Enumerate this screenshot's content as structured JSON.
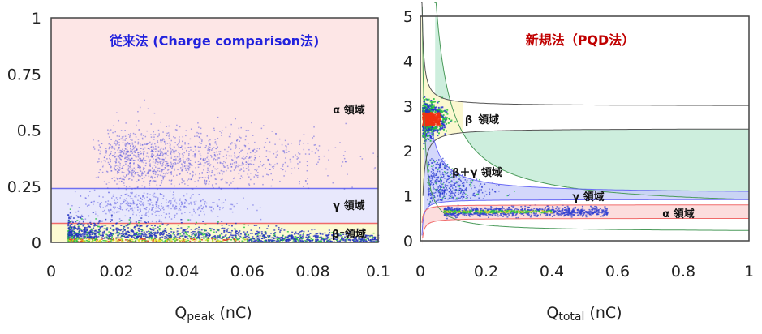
{
  "chart_data": [
    {
      "type": "scatter",
      "title": "従来法 (Charge comparison法)",
      "title_color": "#2222dd",
      "xlabel_main": "Q",
      "xlabel_sub": "peak",
      "xlabel_unit": " (nC)",
      "xlim": [
        0,
        0.1
      ],
      "ylim": [
        0,
        1
      ],
      "xticks": [
        "0",
        "0.02",
        "0.04",
        "0.06",
        "0.08",
        "0.1"
      ],
      "yticks": [
        "0",
        "0.25",
        "0.5",
        "0.75",
        "1"
      ],
      "regions": [
        {
          "label": "α 領域",
          "y_range": [
            0.24,
            1
          ],
          "fill": "#fde6e6",
          "boundary_color": "#6f6ff0"
        },
        {
          "label": "γ 領域",
          "y_range": [
            0.085,
            0.24
          ],
          "fill": "#e8e8fc",
          "boundary_color": "#f06a6a"
        },
        {
          "label": "β⁻領域",
          "y_range": [
            0,
            0.085
          ],
          "fill": "#fcfad2"
        }
      ],
      "clusters": [
        {
          "region": "α",
          "x_center": 0.035,
          "y_center": 0.37,
          "x_extent": [
            0.012,
            0.1
          ],
          "y_extent": [
            0.25,
            0.57
          ]
        },
        {
          "region": "γ",
          "x_center": 0.03,
          "y_center": 0.17,
          "x_extent": [
            0.01,
            0.06
          ],
          "y_extent": [
            0.1,
            0.23
          ]
        },
        {
          "region": "β⁻",
          "x_center": 0.02,
          "y_center": 0.02,
          "x_extent": [
            0.005,
            0.1
          ],
          "y_extent": [
            0,
            0.12
          ]
        }
      ]
    },
    {
      "type": "scatter",
      "title": "新規法（PQD法）",
      "title_color": "#c00000",
      "xlabel_main": "Q",
      "xlabel_sub": "total",
      "xlabel_unit": " (nC)",
      "xlim": [
        0,
        1
      ],
      "ylim": [
        0,
        5
      ],
      "xticks": [
        "0",
        "0.2",
        "0.4",
        "0.6",
        "0.8",
        "1"
      ],
      "yticks": [
        "0",
        "1",
        "2",
        "3",
        "4",
        "5"
      ],
      "regions": [
        {
          "label": "β⁻領域",
          "asymptote_range": [
            2.5,
            3.0
          ],
          "fill": "#fbf8d0",
          "boundary_color": "#555555"
        },
        {
          "label": "β＋γ 領域",
          "fill": "#cdeedd",
          "boundary_color": "#4a9a5a"
        },
        {
          "label": "γ 領域",
          "asymptote_range": [
            0.92,
            1.05
          ],
          "fill": "#c8cdfa",
          "boundary_color": "#6a6af5"
        },
        {
          "label": "α 領域",
          "asymptote_range": [
            0.5,
            0.8
          ],
          "fill": "#fbd4d4",
          "boundary_color": "#f06a6a"
        }
      ],
      "clusters": [
        {
          "region": "β⁻",
          "x_center": 0.02,
          "y_center": 2.7,
          "x_extent": [
            0.0,
            0.1
          ],
          "y_extent": [
            2.3,
            3.2
          ]
        },
        {
          "region": "γ",
          "x_center": 0.05,
          "y_center": 1.1,
          "x_extent": [
            0.02,
            0.5
          ],
          "y_extent": [
            0.9,
            1.3
          ]
        },
        {
          "region": "α",
          "x_center": 0.3,
          "y_center": 0.65,
          "x_extent": [
            0.07,
            0.6
          ],
          "y_extent": [
            0.55,
            0.8
          ]
        }
      ]
    }
  ]
}
